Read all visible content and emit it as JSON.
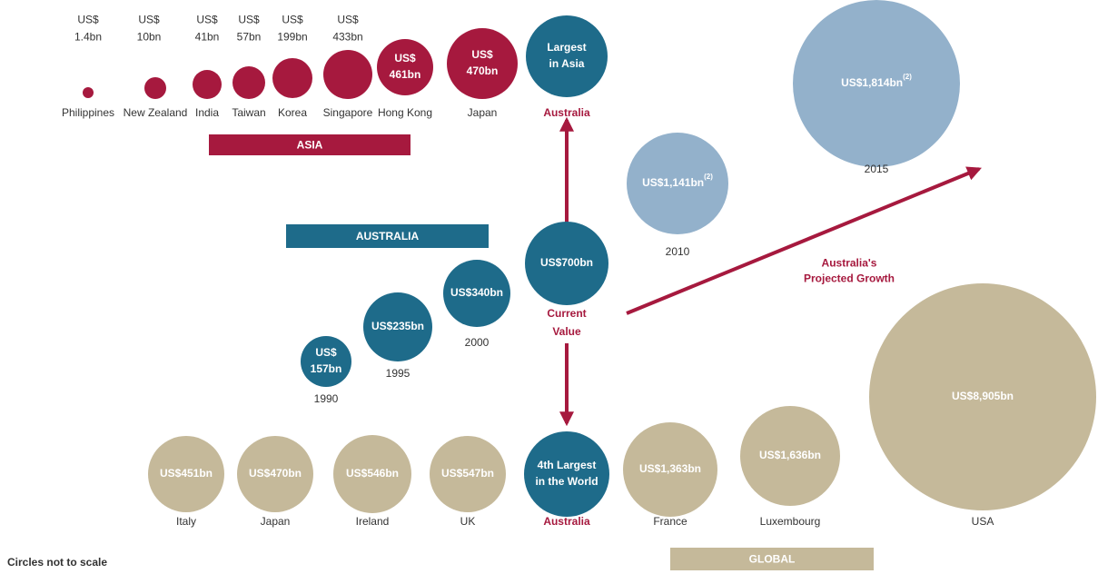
{
  "asia": {
    "title": "ASIA",
    "items": [
      {
        "country": "Philippines",
        "value": [
          "US$",
          "1.4bn"
        ]
      },
      {
        "country": "New Zealand",
        "value": [
          "US$",
          "10bn"
        ]
      },
      {
        "country": "India",
        "value": [
          "US$",
          "41bn"
        ]
      },
      {
        "country": "Taiwan",
        "value": [
          "US$",
          "57bn"
        ]
      },
      {
        "country": "Korea",
        "value": [
          "US$",
          "199bn"
        ]
      },
      {
        "country": "Singapore",
        "value": [
          "US$",
          "433bn"
        ]
      },
      {
        "country": "Hong Kong",
        "value": [
          "US$",
          "461bn"
        ]
      },
      {
        "country": "Japan",
        "value": [
          "US$",
          "470bn"
        ]
      }
    ],
    "australia": {
      "country": "Australia",
      "value": [
        "Largest",
        "in Asia"
      ]
    }
  },
  "australia": {
    "title": "AUSTRALIA",
    "history": [
      {
        "year": "1990",
        "value": [
          "US$",
          "157bn"
        ]
      },
      {
        "year": "1995",
        "value": [
          "US$235bn"
        ]
      },
      {
        "year": "2000",
        "value": [
          "US$340bn"
        ]
      }
    ],
    "current": {
      "value": [
        "US$700bn"
      ],
      "label": [
        "Current",
        "Value"
      ]
    }
  },
  "projection": {
    "label": [
      "Australia's",
      "Projected Growth"
    ],
    "items": [
      {
        "year": "2010",
        "value": "US$1,141bn",
        "note": "(2)"
      },
      {
        "year": "2015",
        "value": "US$1,814bn",
        "note": "(2)"
      }
    ]
  },
  "global": {
    "title": "GLOBAL",
    "items": [
      {
        "country": "Italy",
        "value": [
          "US$451bn"
        ]
      },
      {
        "country": "Japan",
        "value": [
          "US$470bn"
        ]
      },
      {
        "country": "Ireland",
        "value": [
          "US$546bn"
        ]
      },
      {
        "country": "UK",
        "value": [
          "US$547bn"
        ]
      },
      {
        "country": "France",
        "value": [
          "US$1,363bn"
        ]
      },
      {
        "country": "Luxembourg",
        "value": [
          "US$1,636bn"
        ]
      },
      {
        "country": "USA",
        "value": [
          "US$8,905bn"
        ]
      }
    ],
    "australia": {
      "country": "Australia",
      "value": [
        "4th Largest",
        "in the World"
      ]
    }
  },
  "footnote": "Circles not to scale"
}
